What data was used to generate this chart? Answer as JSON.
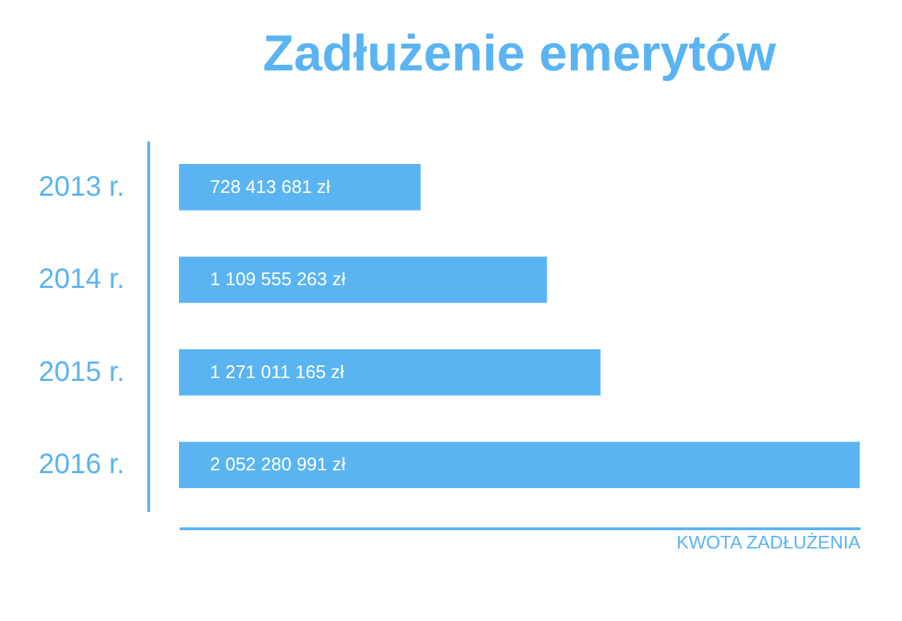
{
  "chart_data": {
    "type": "bar",
    "orientation": "horizontal",
    "title": "Zadłużenie emerytów",
    "xlabel": "KWOTA ZADŁUŻENIA",
    "categories": [
      "2013 r.",
      "2014 r.",
      "2015 r.",
      "2016 r."
    ],
    "values": [
      728413681,
      1109555263,
      1271011165,
      2052280991
    ],
    "value_labels": [
      "728 413 681 zł",
      "1 109 555 263 zł",
      "1 271 011 165 zł",
      "2 052 280 991 zł"
    ],
    "color": "#5ab4f2"
  }
}
